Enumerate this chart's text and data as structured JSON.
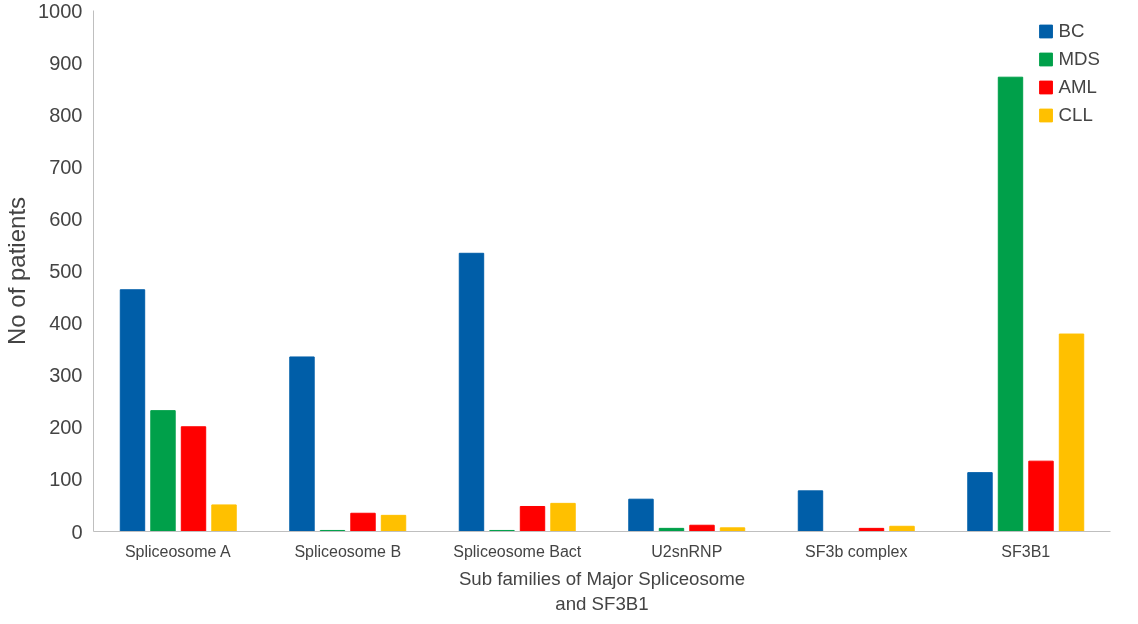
{
  "chart_data": {
    "type": "bar",
    "xlabel": "Sub families of Major Spliceosome\nand SF3B1",
    "ylabel": "No of patients",
    "categories": [
      "Spliceosome A",
      "Spliceosome B",
      "Spliceosome Bact",
      "U2snRNP",
      "SF3b complex",
      "SF3B1"
    ],
    "series": [
      {
        "name": "BC",
        "color": "#005ea8",
        "values": [
          464,
          335,
          534,
          62,
          78,
          113
        ]
      },
      {
        "name": "MDS",
        "color": "#00a04a",
        "values": [
          232,
          2,
          2,
          6,
          null,
          872
        ]
      },
      {
        "name": "AML",
        "color": "#ff0000",
        "values": [
          201,
          35,
          48,
          12,
          6,
          135
        ]
      },
      {
        "name": "CLL",
        "color": "#ffc000",
        "values": [
          51,
          31,
          54,
          7,
          10,
          379
        ]
      }
    ],
    "ylim": [
      0,
      1000
    ],
    "yticks": [
      0,
      100,
      200,
      300,
      400,
      500,
      600,
      700,
      800,
      900,
      1000
    ],
    "grid": false,
    "legend": "top right"
  }
}
